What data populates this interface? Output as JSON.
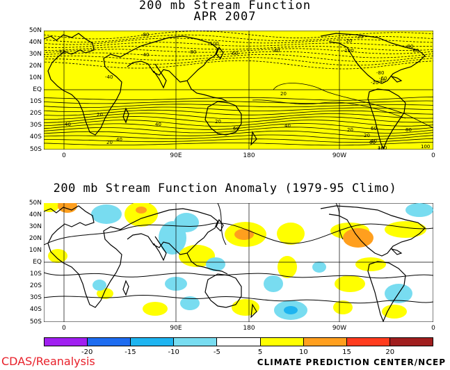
{
  "top": {
    "title_line1": "200 mb Stream Function",
    "title_line2": "APR 2007",
    "lat_labels": [
      "50N",
      "40N",
      "30N",
      "20N",
      "10N",
      "EQ",
      "10S",
      "20S",
      "30S",
      "40S",
      "50S"
    ],
    "lon_labels": [
      "0",
      "90E",
      "180",
      "90W",
      "0"
    ],
    "contour_labels": [
      "-80",
      "-100",
      "-60",
      "-40",
      "-80",
      "-60",
      "-40",
      "-20",
      "-20",
      "-100",
      "-80",
      "-60",
      "-40",
      "-80",
      "-60",
      "-40",
      "-20",
      "20",
      "20",
      "20",
      "40",
      "40",
      "20",
      "40",
      "60",
      "80",
      "100",
      "40",
      "60",
      "20",
      "60",
      "80",
      "100",
      "40",
      "20"
    ]
  },
  "bottom": {
    "title": "200 mb Stream Function Anomaly (1979-95 Climo)",
    "lat_labels": [
      "50N",
      "40N",
      "30N",
      "20N",
      "10N",
      "EQ",
      "10S",
      "20S",
      "30S",
      "40S",
      "50S"
    ],
    "lon_labels": [
      "0",
      "90E",
      "180",
      "90W",
      "0"
    ]
  },
  "colorbar": {
    "colors": [
      "#a020f0",
      "#1e6cf0",
      "#1eb4f0",
      "#78dcf0",
      "#ffffff",
      "#ffff00",
      "#ff9f1e",
      "#ff3c1e",
      "#a01e1e"
    ],
    "labels": [
      "-20",
      "-15",
      "-10",
      "-5",
      "5",
      "10",
      "15",
      "20"
    ]
  },
  "credits": {
    "left": "CDAS/Reanalysis",
    "right": "CLIMATE PREDICTION CENTER/NCEP"
  },
  "colors": {
    "field_fill": "#ffff00",
    "positive": "#ffff00",
    "strong_positive": "#ff9f1e",
    "negative": "#78dcf0",
    "strong_negative": "#1eb4f0"
  }
}
